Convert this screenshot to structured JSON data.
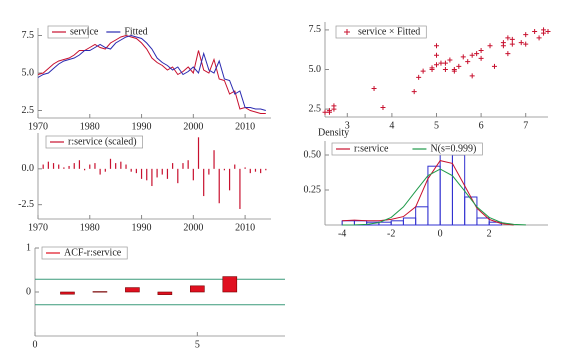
{
  "chart_data": [
    {
      "type": "line",
      "x": [
        1970,
        1971,
        1972,
        1973,
        1974,
        1975,
        1976,
        1977,
        1978,
        1979,
        1980,
        1981,
        1982,
        1983,
        1984,
        1985,
        1986,
        1987,
        1988,
        1989,
        1990,
        1991,
        1992,
        1993,
        1994,
        1995,
        1996,
        1997,
        1998,
        1999,
        2000,
        2001,
        2002,
        2003,
        2004,
        2005,
        2006,
        2007,
        2008,
        2009,
        2010,
        2011,
        2012,
        2013,
        2014
      ],
      "series": [
        {
          "name": "service",
          "color": "#c8102e",
          "values": [
            4.9,
            5.0,
            5.3,
            5.6,
            5.8,
            5.9,
            6.0,
            6.2,
            6.5,
            6.5,
            6.7,
            6.9,
            6.7,
            6.6,
            7.0,
            7.2,
            7.4,
            7.5,
            7.4,
            7.3,
            7.0,
            6.6,
            6.0,
            5.7,
            5.5,
            5.2,
            5.4,
            4.9,
            5.1,
            5.4,
            5.0,
            6.5,
            5.2,
            5.0,
            5.9,
            4.6,
            4.5,
            3.6,
            3.8,
            2.6,
            2.7,
            2.5,
            2.4,
            2.3,
            2.3
          ]
        },
        {
          "name": "Fitted",
          "color": "#2a2ab0",
          "values": [
            4.7,
            4.9,
            5.0,
            5.3,
            5.6,
            5.8,
            5.9,
            6.0,
            6.2,
            6.5,
            6.5,
            6.7,
            6.9,
            6.7,
            6.6,
            7.0,
            7.2,
            7.4,
            7.5,
            7.4,
            7.3,
            7.0,
            6.6,
            6.0,
            5.7,
            5.5,
            5.2,
            5.4,
            4.9,
            5.1,
            5.4,
            5.0,
            6.3,
            5.2,
            5.0,
            5.8,
            4.6,
            4.5,
            3.6,
            3.8,
            2.7,
            2.7,
            2.6,
            2.6,
            2.5
          ]
        }
      ],
      "xlim": [
        1970,
        2015
      ],
      "xticks": [
        1970,
        1980,
        1990,
        2000,
        2010
      ],
      "ylim": [
        2,
        8
      ],
      "yticks": [
        {
          "value": 2.5,
          "label": "2.5"
        },
        {
          "value": 5,
          "label": "5.0"
        },
        {
          "value": 7.5,
          "label": "7.5"
        }
      ]
    },
    {
      "type": "scatter",
      "x": [
        4.7,
        4.9,
        5.0,
        5.3,
        5.6,
        5.8,
        5.9,
        6.0,
        6.2,
        6.5,
        6.5,
        6.7,
        6.9,
        6.7,
        6.6,
        7.0,
        7.2,
        7.4,
        7.5,
        7.4,
        7.3,
        7.0,
        6.6,
        6.0,
        5.7,
        5.5,
        5.2,
        5.4,
        4.9,
        5.1,
        5.4,
        5.0,
        6.3,
        5.2,
        5.0,
        5.8,
        4.6,
        4.5,
        3.6,
        3.8,
        2.7,
        2.7,
        2.6,
        2.6,
        2.5
      ],
      "series": [
        {
          "name": "service × Fitted",
          "color": "#c8102e",
          "values": [
            4.9,
            5.0,
            5.3,
            5.6,
            5.8,
            5.9,
            6.0,
            6.2,
            6.5,
            6.5,
            6.7,
            6.9,
            6.7,
            6.6,
            7.0,
            7.2,
            7.4,
            7.5,
            7.4,
            7.3,
            7.0,
            6.6,
            6.0,
            5.7,
            5.5,
            5.2,
            5.4,
            4.9,
            5.1,
            5.4,
            5.0,
            6.5,
            5.2,
            5.0,
            5.9,
            4.6,
            4.5,
            3.6,
            3.8,
            2.6,
            2.7,
            2.5,
            2.4,
            2.3,
            2.3
          ]
        }
      ],
      "xlim": [
        2.5,
        7.5
      ],
      "xticks": [
        3,
        4,
        5,
        6,
        7
      ],
      "ylim": [
        2,
        8
      ],
      "yticks": [
        {
          "value": 2.5,
          "label": "2.5"
        },
        {
          "value": 5,
          "label": "5.0"
        },
        {
          "value": 7.5,
          "label": "7.5"
        }
      ]
    },
    {
      "type": "bar",
      "x": [
        1971,
        1972,
        1973,
        1974,
        1975,
        1976,
        1977,
        1978,
        1979,
        1980,
        1981,
        1982,
        1983,
        1984,
        1985,
        1986,
        1987,
        1988,
        1989,
        1990,
        1991,
        1992,
        1993,
        1994,
        1995,
        1996,
        1997,
        1998,
        1999,
        2000,
        2001,
        2002,
        2003,
        2004,
        2005,
        2006,
        2007,
        2008,
        2009,
        2010,
        2011,
        2012,
        2013,
        2014
      ],
      "series": [
        {
          "name": "r:service (scaled)",
          "color": "#c8102e",
          "values": [
            0.3,
            0.5,
            0.4,
            0.3,
            0.1,
            0.2,
            0.4,
            0.6,
            -0.1,
            0.3,
            0.4,
            -0.4,
            -0.2,
            0.7,
            0.4,
            0.5,
            0.3,
            -0.2,
            -0.3,
            -0.7,
            -0.8,
            -1.2,
            -0.6,
            -0.4,
            -0.7,
            0.4,
            -1.0,
            0.4,
            0.6,
            -0.8,
            2.2,
            -1.9,
            -0.4,
            1.3,
            -2.4,
            -0.1,
            -1.5,
            0.3,
            -2.8,
            0.1,
            -0.3,
            -0.2,
            -0.3,
            -0.1
          ]
        }
      ],
      "xlim": [
        1970,
        2015
      ],
      "xticks": [
        1970,
        1980,
        1990,
        2000,
        2010
      ],
      "ylim": [
        -3.5,
        2.5
      ],
      "yticks": [
        {
          "value": -2.5,
          "label": "-2.5"
        },
        {
          "value": 0,
          "label": "0.0"
        }
      ]
    },
    {
      "type": "histogram",
      "ylabel": "Density",
      "color": "#3030d0",
      "bins": [
        -4,
        -3.5,
        -3,
        -2.5,
        -2,
        -1.5,
        -1,
        -0.5,
        0,
        0.5,
        1,
        1.5,
        2,
        2.5
      ],
      "values": [
        0.03,
        0.03,
        0.02,
        0.02,
        0.03,
        0.05,
        0.13,
        0.42,
        0.58,
        0.5,
        0.2,
        0.05,
        0.02
      ],
      "lines": [
        {
          "name": "r:service",
          "color": "#c8102e",
          "x": [
            -4,
            -3.5,
            -3,
            -2.5,
            -2,
            -1.5,
            -1,
            -0.5,
            0,
            0.5,
            1,
            1.5,
            2,
            2.5,
            3
          ],
          "values": [
            0.03,
            0.035,
            0.03,
            0.03,
            0.04,
            0.06,
            0.13,
            0.33,
            0.46,
            0.44,
            0.28,
            0.12,
            0.04,
            0.01,
            0
          ]
        },
        {
          "name": "N(s=0.999)",
          "color": "#1f9a4a",
          "x": [
            -4,
            -3.5,
            -3,
            -2.5,
            -2,
            -1.5,
            -1,
            -0.5,
            0,
            0.5,
            1,
            1.5,
            2,
            2.5,
            3,
            3.5
          ],
          "values": [
            0.0001,
            0.0009,
            0.0044,
            0.0175,
            0.054,
            0.1295,
            0.242,
            0.352,
            0.399,
            0.352,
            0.242,
            0.1295,
            0.054,
            0.0175,
            0.0044,
            0.0009
          ]
        }
      ],
      "xlim": [
        -4.7,
        4.4
      ],
      "xticks": [
        -4,
        -2,
        0,
        2
      ],
      "ylim": [
        0,
        0.6
      ],
      "yticks": [
        0.25,
        {
          "value": 0.5,
          "label": "0.50"
        }
      ]
    },
    {
      "type": "bar",
      "x": [
        1,
        2,
        3,
        4,
        5,
        6
      ],
      "series": [
        {
          "name": "ACF-r:service",
          "color": "#e01020",
          "values": [
            -0.05,
            0.01,
            0.1,
            -0.06,
            0.14,
            0.35
          ]
        }
      ],
      "confidence_limits": [
        0.29,
        -0.29
      ],
      "xlim": [
        0,
        7.7
      ],
      "xticks": [
        0,
        5
      ],
      "ylim": [
        -1,
        1
      ],
      "yticks": [
        0,
        1
      ]
    }
  ]
}
